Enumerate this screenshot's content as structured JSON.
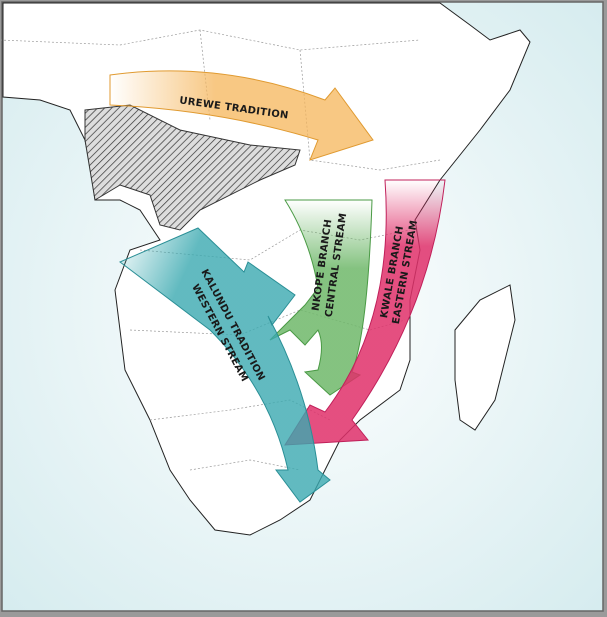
{
  "labels": {
    "urewe": "UREWE TRADITION",
    "nkope": [
      "NKOPE BRANCH",
      "CENTRAL STREAM"
    ],
    "kwale": [
      "KWALE BRANCH",
      "EASTERN STREAM"
    ],
    "kalundu": [
      "KALUNDU TRADITION",
      "WESTERN STREAM"
    ]
  }
}
